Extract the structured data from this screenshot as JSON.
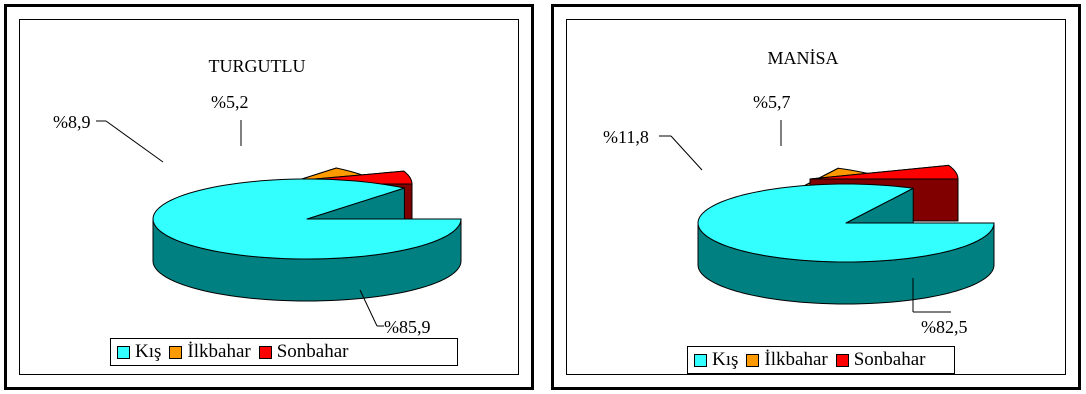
{
  "charts": [
    {
      "title": "TURGUTLU",
      "labels": [
        "%85,9",
        "%8,9",
        "%5,2"
      ],
      "legend": [
        "Kış",
        "İlkbahar",
        "Sonbahar"
      ]
    },
    {
      "title": "MANİSA",
      "labels": [
        "%82,5",
        "%11,8",
        "%5,7"
      ],
      "legend": [
        "Kış",
        "İlkbahar",
        "Sonbahar"
      ]
    }
  ],
  "colors": {
    "kis_top": "#33FFFF",
    "kis_side": "#008080",
    "ilkbahar_top": "#FF9900",
    "ilkbahar_side": "#996633",
    "sonbahar_top": "#FF0000",
    "sonbahar_side": "#800000"
  },
  "chart_data": [
    {
      "type": "pie",
      "title": "TURGUTLU",
      "categories": [
        "Kış",
        "İlkbahar",
        "Sonbahar"
      ],
      "values": [
        85.9,
        8.9,
        5.2
      ],
      "legend": "bottom",
      "style": "3d-exploded"
    },
    {
      "type": "pie",
      "title": "MANİSA",
      "categories": [
        "Kış",
        "İlkbahar",
        "Sonbahar"
      ],
      "values": [
        82.5,
        11.8,
        5.7
      ],
      "legend": "bottom",
      "style": "3d-exploded"
    }
  ]
}
